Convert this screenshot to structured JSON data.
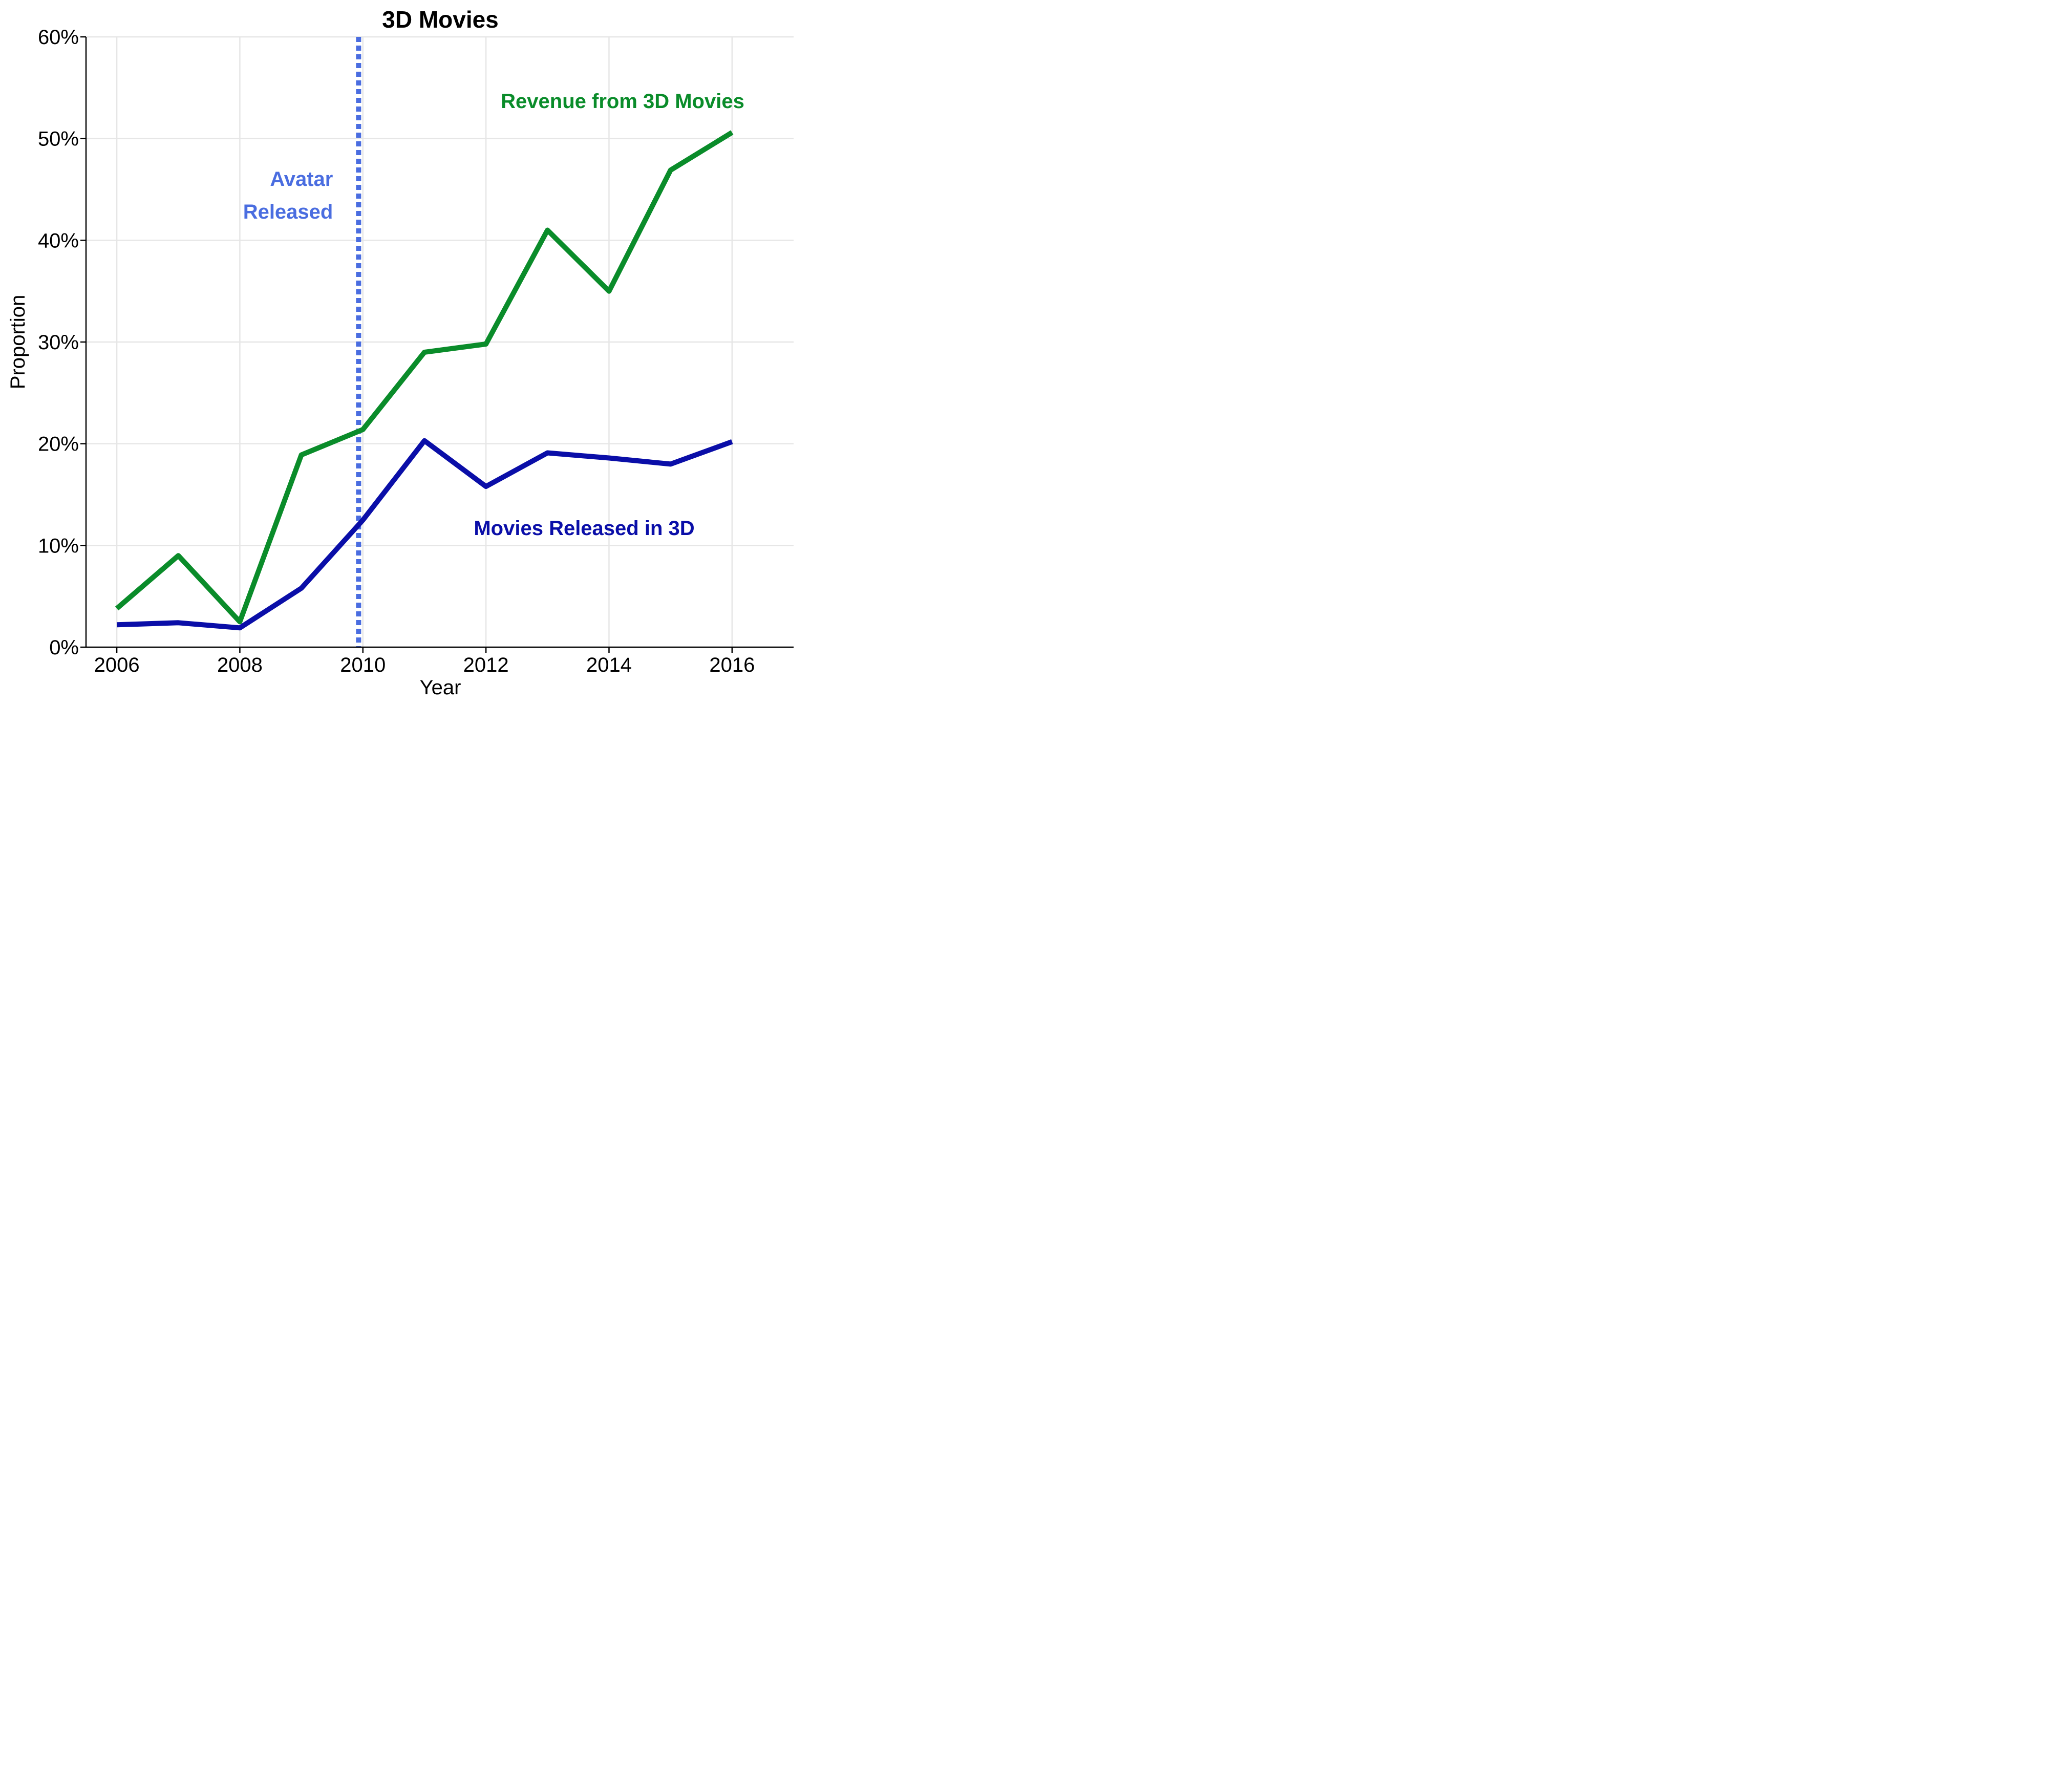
{
  "chart_data": {
    "type": "line",
    "title": "3D Movies",
    "xlabel": "Year",
    "ylabel": "Proportion",
    "xlim": [
      2005.5,
      2017
    ],
    "ylim": [
      0,
      60
    ],
    "x_ticks": [
      2006,
      2008,
      2010,
      2012,
      2014,
      2016
    ],
    "x_tick_labels": [
      "2006",
      "2008",
      "2010",
      "2012",
      "2014",
      "2016"
    ],
    "y_ticks": [
      0,
      10,
      20,
      30,
      40,
      50,
      60
    ],
    "y_tick_labels": [
      "0%",
      "10%",
      "20%",
      "30%",
      "40%",
      "50%",
      "60%"
    ],
    "grid": true,
    "x": [
      2006,
      2007,
      2008,
      2009,
      2010,
      2011,
      2012,
      2013,
      2014,
      2015,
      2016
    ],
    "series": [
      {
        "name": "Revenue from 3D Movies",
        "color": "#0a8c2a",
        "values": [
          3.8,
          9.0,
          2.5,
          18.9,
          21.4,
          29.0,
          29.8,
          41.0,
          35.0,
          46.9,
          50.6
        ]
      },
      {
        "name": "Movies Released in 3D",
        "color": "#0a0ea8",
        "values": [
          2.2,
          2.4,
          1.9,
          5.8,
          12.5,
          20.3,
          15.8,
          19.1,
          18.6,
          18.0,
          20.2
        ]
      }
    ],
    "annotations": [
      {
        "type": "vline",
        "x": 2009.93,
        "color": "#4a6de0",
        "style": "dotted",
        "text_lines": [
          "Avatar",
          "Released"
        ]
      }
    ]
  }
}
